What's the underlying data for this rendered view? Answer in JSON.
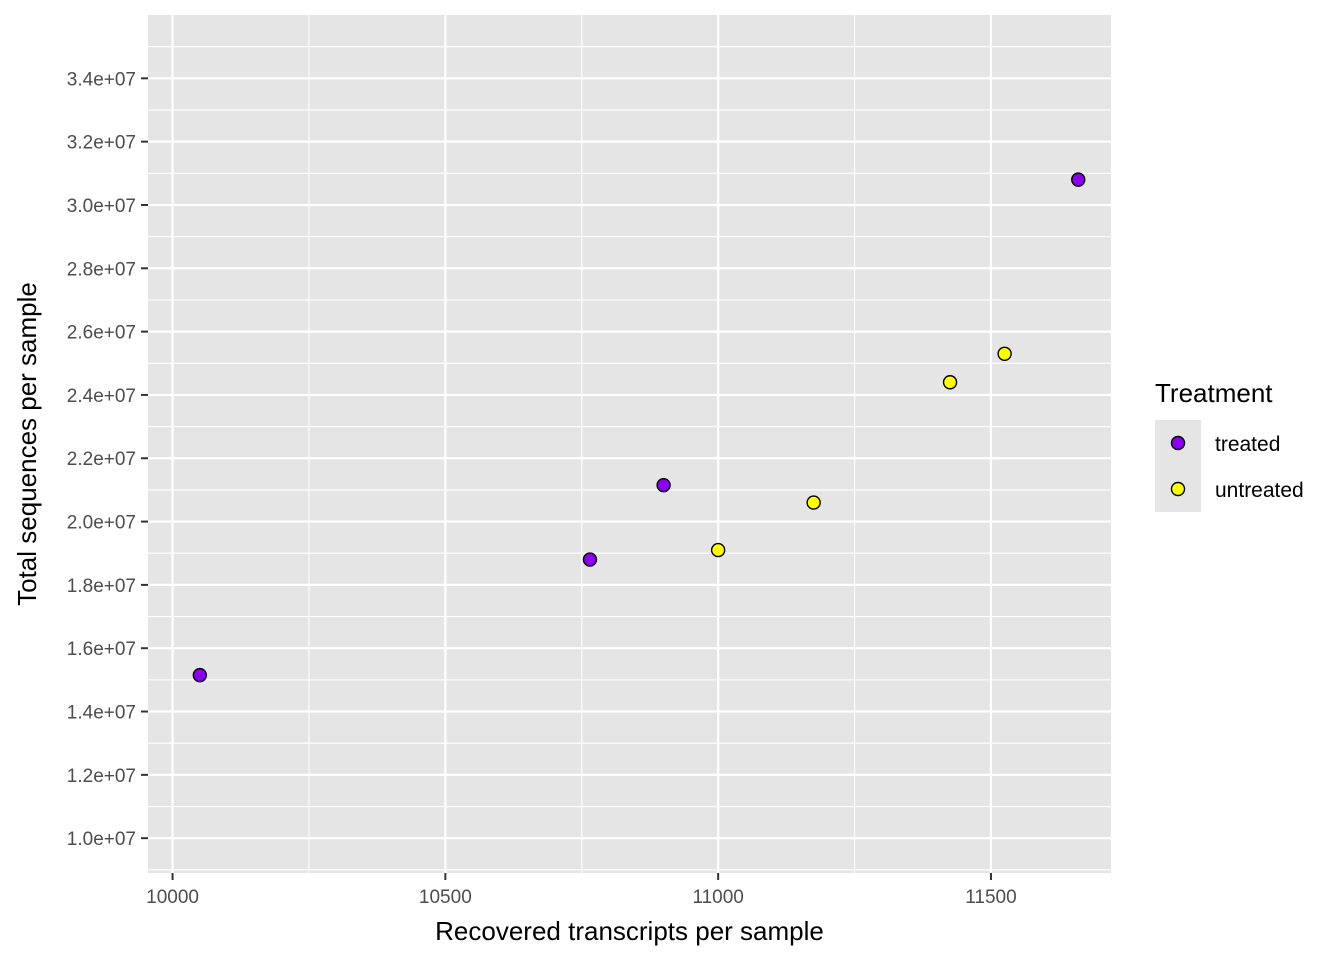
{
  "chart_data": {
    "type": "scatter",
    "title": "",
    "xlabel": "Recovered transcripts per sample",
    "ylabel": "Total sequences per sample",
    "xlim": [
      9955,
      11720
    ],
    "ylim": [
      8900000,
      36000000
    ],
    "x_ticks": [
      10000,
      10500,
      11000,
      11500
    ],
    "x_tick_labels": [
      "10000",
      "10500",
      "11000",
      "11500"
    ],
    "y_ticks": [
      10000000,
      12000000,
      14000000,
      16000000,
      18000000,
      20000000,
      22000000,
      24000000,
      26000000,
      28000000,
      30000000,
      32000000,
      34000000
    ],
    "y_tick_labels": [
      "1.0e+07",
      "1.2e+07",
      "1.4e+07",
      "1.6e+07",
      "1.8e+07",
      "2.0e+07",
      "2.2e+07",
      "2.4e+07",
      "2.6e+07",
      "2.8e+07",
      "3.0e+07",
      "3.2e+07",
      "3.4e+07"
    ],
    "grid": true,
    "panel_background": "#e5e5e5",
    "grid_color": "#ffffff",
    "legend": {
      "title": "Treatment",
      "position": "right",
      "entries": [
        {
          "label": "treated",
          "color": "#8b00ee"
        },
        {
          "label": "untreated",
          "color": "#ffff00"
        }
      ]
    },
    "series": [
      {
        "name": "treated",
        "color": "#8b00ee",
        "points": [
          {
            "x": 10050,
            "y": 15150000
          },
          {
            "x": 10765,
            "y": 18800000
          },
          {
            "x": 10900,
            "y": 21150000
          },
          {
            "x": 11660,
            "y": 30800000
          }
        ]
      },
      {
        "name": "untreated",
        "color": "#ffff00",
        "points": [
          {
            "x": 11000,
            "y": 19100000
          },
          {
            "x": 11175,
            "y": 20600000
          },
          {
            "x": 11425,
            "y": 24400000
          },
          {
            "x": 11525,
            "y": 25300000
          }
        ]
      }
    ]
  }
}
